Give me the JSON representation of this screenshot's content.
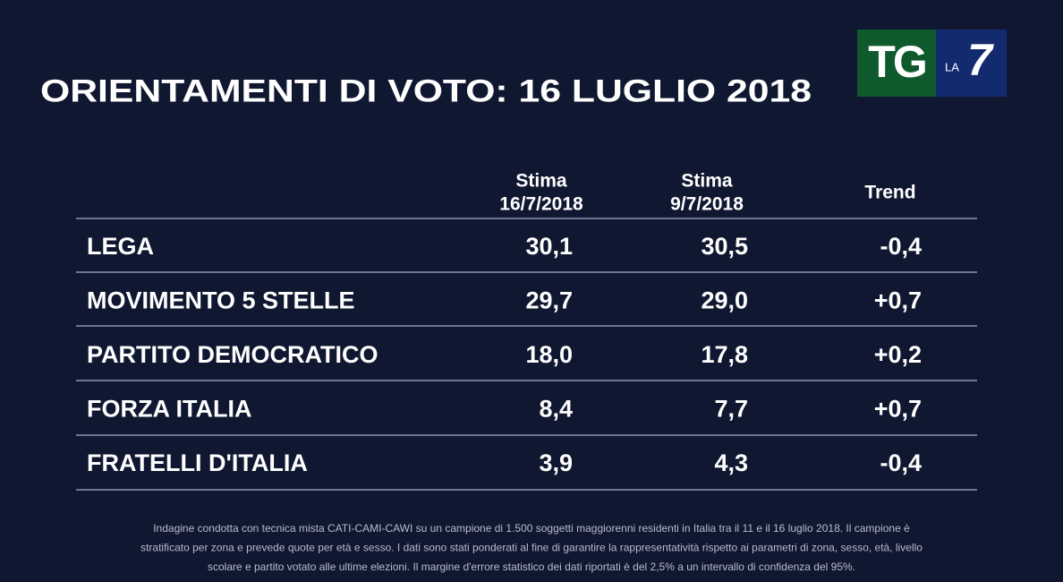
{
  "header": {
    "title": "ORIENTAMENTI DI VOTO: 16 LUGLIO 2018"
  },
  "logo": {
    "left": "TG",
    "small": "LA",
    "right": "7"
  },
  "table": {
    "columns": [
      [
        "Stima",
        "16/7/2018"
      ],
      [
        "Stima",
        "9/7/2018"
      ],
      [
        "Trend"
      ]
    ],
    "rows": [
      [
        "LEGA",
        "30,1",
        "30,5",
        "-0,4"
      ],
      [
        "MOVIMENTO 5 STELLE",
        "29,7",
        "29,0",
        "+0,7"
      ],
      [
        "PARTITO DEMOCRATICO",
        "18,0",
        "17,8",
        "+0,2"
      ],
      [
        "FORZA ITALIA",
        "8,4",
        "7,7",
        "+0,7"
      ],
      [
        "FRATELLI D'ITALIA",
        "3,9",
        "4,3",
        "-0,4"
      ]
    ]
  },
  "footnote": [
    "Indagine condotta con tecnica mista CATI-CAMI-CAWI su un campione di 1.500 soggetti maggiorenni residenti in Italia tra il  11 e il 16 luglio 2018. Il campione è",
    "stratificato per zona e prevede quote per età e sesso. I dati sono stati ponderati al fine di garantire la rappresentatività rispetto ai parametri di zona, sesso, età, livello",
    "scolare e partito votato alle ultime elezioni. Il margine d'errore statistico dei dati riportati è del 2,5% a un intervallo di confidenza del 95%."
  ]
}
